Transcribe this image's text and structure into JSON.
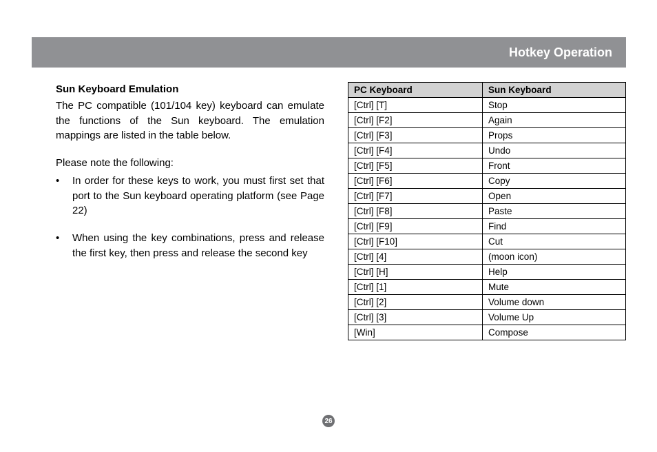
{
  "header": {
    "title": "Hotkey Operation"
  },
  "left": {
    "heading": "Sun Keyboard Emulation",
    "intro": "The PC compatible (101/104 key) keyboard can emulate the functions of the Sun keyboard.  The emulation mappings are listed in the table below.",
    "please_note": "Please note the following:",
    "bullets": [
      "In order for these keys to work, you must first set that port to the Sun keyboard operating platform (see Page 22)",
      "When using the key combinations, press and release the first key, then press and release the second key"
    ]
  },
  "table": {
    "columns": [
      "PC Keyboard",
      "Sun Keyboard"
    ],
    "rows": [
      [
        "[Ctrl] [T]",
        "Stop"
      ],
      [
        "[Ctrl] [F2]",
        "Again"
      ],
      [
        "[Ctrl] [F3]",
        "Props"
      ],
      [
        "[Ctrl] [F4]",
        "Undo"
      ],
      [
        "[Ctrl] [F5]",
        "Front"
      ],
      [
        "[Ctrl] [F6]",
        "Copy"
      ],
      [
        "[Ctrl] [F7]",
        "Open"
      ],
      [
        "[Ctrl] [F8]",
        "Paste"
      ],
      [
        "[Ctrl] [F9]",
        "Find"
      ],
      [
        "[Ctrl] [F10]",
        "Cut"
      ],
      [
        "[Ctrl] [4]",
        "(moon icon)"
      ],
      [
        "[Ctrl] [H]",
        "Help"
      ],
      [
        "[Ctrl] [1]",
        "Mute"
      ],
      [
        "[Ctrl] [2]",
        "Volume down"
      ],
      [
        "[Ctrl] [3]",
        "Volume Up"
      ],
      [
        "[Win]",
        "Compose"
      ]
    ]
  },
  "page_number": "26"
}
